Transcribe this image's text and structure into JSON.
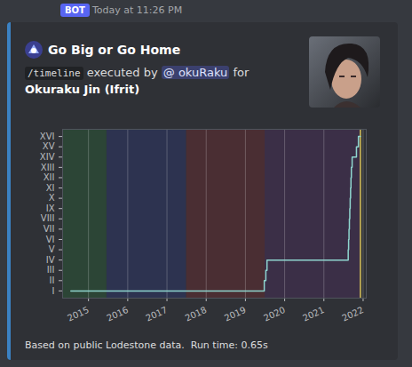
{
  "message": {
    "badge": "BOT",
    "timestamp": "Today at 11:26 PM",
    "author": "Go Big or Go Home",
    "command": "/timeline",
    "executed_by": "executed by",
    "mention": "@ okuRaku",
    "for": "for",
    "character": "Okuraku Jin (Ifrit)",
    "footer": "Based on public Lodestone data.  Run time: 0.65s"
  },
  "chart_data": {
    "type": "line",
    "line_style": "step",
    "color": "#8fd6cf",
    "x": [
      2014.55,
      2019.48,
      2019.52,
      2019.55,
      2021.62,
      2021.63,
      2021.64,
      2021.65,
      2021.66,
      2021.67,
      2021.68,
      2021.69,
      2021.7,
      2021.72,
      2021.83,
      2021.88,
      2021.93
    ],
    "values": [
      1,
      2,
      3,
      4,
      5,
      6,
      7,
      8,
      9,
      10,
      11,
      12,
      13,
      14,
      15,
      16,
      16
    ],
    "xlim": [
      2014.34,
      2022.08
    ],
    "xticks": [
      2015,
      2016,
      2017,
      2018,
      2019,
      2020,
      2021,
      2022
    ],
    "ylim": [
      0.3,
      16.7
    ],
    "yticks": [
      {
        "value": 1,
        "label": "I"
      },
      {
        "value": 2,
        "label": "II"
      },
      {
        "value": 3,
        "label": "III"
      },
      {
        "value": 4,
        "label": "IV"
      },
      {
        "value": 5,
        "label": "V"
      },
      {
        "value": 6,
        "label": "VI"
      },
      {
        "value": 7,
        "label": "VII"
      },
      {
        "value": 8,
        "label": "VIII"
      },
      {
        "value": 9,
        "label": "IX"
      },
      {
        "value": 10,
        "label": "X"
      },
      {
        "value": 11,
        "label": "XI"
      },
      {
        "value": 12,
        "label": "XII"
      },
      {
        "value": 13,
        "label": "XIII"
      },
      {
        "value": 14,
        "label": "XIV"
      },
      {
        "value": 15,
        "label": "XV"
      },
      {
        "value": 16,
        "label": "XVI"
      }
    ],
    "grid": "x",
    "bands": [
      {
        "start": 2014.34,
        "end": 2015.47,
        "color": "#2c4536"
      },
      {
        "start": 2015.47,
        "end": 2017.5,
        "color": "#2d3350"
      },
      {
        "start": 2017.5,
        "end": 2019.5,
        "color": "#4a2e33"
      },
      {
        "start": 2019.5,
        "end": 2021.93,
        "color": "#3b2f47"
      }
    ],
    "vline": {
      "value": 2021.93,
      "color": "#d9c35a"
    }
  }
}
